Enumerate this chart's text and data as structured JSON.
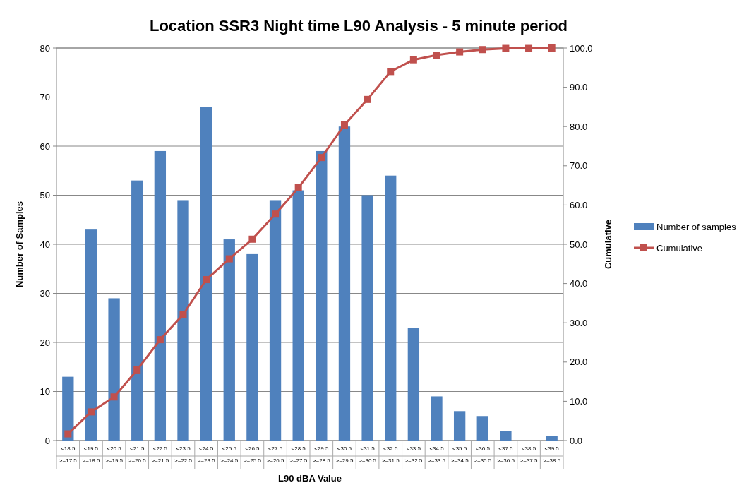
{
  "chart_data": {
    "type": "bar",
    "title": "Location SSR3 Night time L90 Analysis - 5 minute period",
    "xlabel": "L90 dBA Value",
    "ylabel": "Number of Samples",
    "y2label": "Cumulative",
    "categories": [
      "<18.5\n>=17.5",
      "<19.5\n>=18.5",
      "<20.5\n>=19.5",
      "<21.5\n>=20.5",
      "<22.5\n>=21.5",
      "<23.5\n>=22.5",
      "<24.5\n>=23.5",
      "<25.5\n>=24.5",
      "<26.5\n>=25.5",
      "<27.5\n>=26.5",
      "<28.5\n>=27.5",
      "<29.5\n>=28.5",
      "<30.5\n>=29.5",
      "<31.5\n>=30.5",
      "<32.5\n>=31.5",
      "<33.5\n>=32.5",
      "<34.5\n>=33.5",
      "<35.5\n>=34.5",
      "<36.5\n>=35.5",
      "<37.5\n>=36.5",
      "<38.5\n>=37.5",
      "<39.5\n>=38.5"
    ],
    "series": [
      {
        "name": "Number of samples",
        "color": "#4f81bd",
        "values": [
          13,
          43,
          29,
          53,
          59,
          49,
          68,
          41,
          38,
          49,
          51,
          59,
          64,
          50,
          54,
          23,
          9,
          6,
          5,
          2,
          0,
          1
        ]
      },
      {
        "name": "Cumulative",
        "type": "line",
        "axis": "y2",
        "color": "#c0504d",
        "marker": "square",
        "values": [
          1.7,
          7.3,
          11.1,
          18.0,
          25.7,
          32.1,
          41.0,
          46.3,
          51.3,
          57.7,
          64.4,
          72.1,
          80.4,
          86.9,
          94.0,
          97.0,
          98.2,
          99.0,
          99.6,
          99.9,
          99.9,
          100.0
        ]
      }
    ],
    "ylim": [
      0,
      80
    ],
    "yticks": [
      0,
      10,
      20,
      30,
      40,
      50,
      60,
      70,
      80
    ],
    "y2lim": [
      0,
      100
    ],
    "y2ticks": [
      {
        "value": 0,
        "label": "0.0"
      },
      {
        "value": 10,
        "label": "10.0"
      },
      {
        "value": 20,
        "label": "20.0"
      },
      {
        "value": 30,
        "label": "30.0"
      },
      {
        "value": 40,
        "label": "40.0"
      },
      {
        "value": 50,
        "label": "50.0"
      },
      {
        "value": 60,
        "label": "60.0"
      },
      {
        "value": 70,
        "label": "70.0"
      },
      {
        "value": 80,
        "label": "80.0"
      },
      {
        "value": 90,
        "label": "90.0"
      },
      {
        "value": 100,
        "label": "100.0"
      }
    ],
    "grid": "y",
    "legend": "right"
  }
}
